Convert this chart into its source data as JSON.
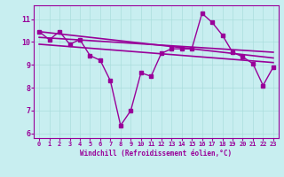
{
  "xlabel": "Windchill (Refroidissement éolien,°C)",
  "ylabel": "",
  "background_color": "#c8eef0",
  "grid_color": "#aadddd",
  "line_color": "#990099",
  "xlim": [
    -0.5,
    23.5
  ],
  "ylim": [
    5.8,
    11.6
  ],
  "yticks": [
    6,
    7,
    8,
    9,
    10,
    11
  ],
  "xticks": [
    0,
    1,
    2,
    3,
    4,
    5,
    6,
    7,
    8,
    9,
    10,
    11,
    12,
    13,
    14,
    15,
    16,
    17,
    18,
    19,
    20,
    21,
    22,
    23
  ],
  "series": [
    {
      "x": [
        0,
        1,
        2,
        3,
        4,
        5,
        6,
        7,
        8,
        9,
        10,
        11,
        12,
        13,
        14,
        15,
        16,
        17,
        18,
        19,
        20,
        21,
        22,
        23
      ],
      "y": [
        10.45,
        10.1,
        10.45,
        9.9,
        10.1,
        9.4,
        9.2,
        8.3,
        6.35,
        7.0,
        8.65,
        8.5,
        9.5,
        9.7,
        9.7,
        9.7,
        11.25,
        10.85,
        10.3,
        9.55,
        9.35,
        9.05,
        8.1,
        8.9
      ],
      "style": "-",
      "marker": "s",
      "markersize": 2.5,
      "linewidth": 1.0
    },
    {
      "x": [
        0,
        23
      ],
      "y": [
        10.45,
        9.3
      ],
      "style": "-",
      "marker": null,
      "markersize": 0,
      "linewidth": 1.2
    },
    {
      "x": [
        0,
        23
      ],
      "y": [
        10.2,
        9.55
      ],
      "style": "-",
      "marker": null,
      "markersize": 0,
      "linewidth": 1.2
    },
    {
      "x": [
        0,
        23
      ],
      "y": [
        9.9,
        9.1
      ],
      "style": "-",
      "marker": null,
      "markersize": 0,
      "linewidth": 1.2
    }
  ]
}
